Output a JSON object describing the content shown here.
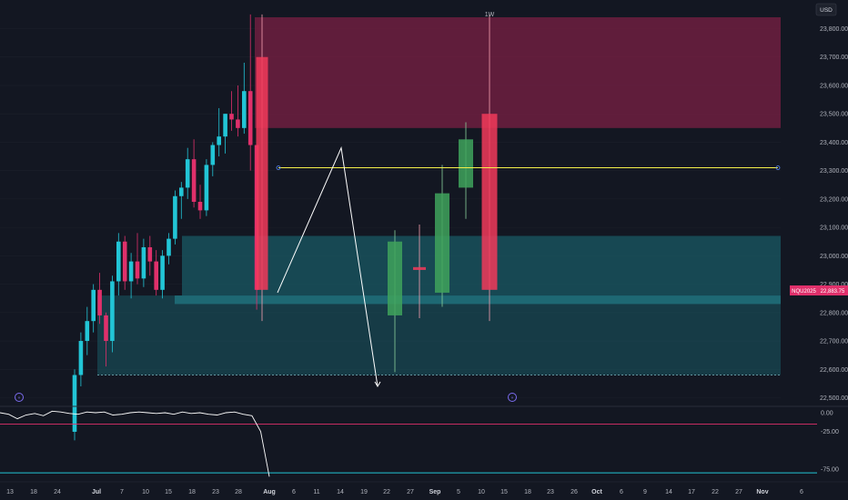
{
  "header": {
    "interval": "1W",
    "currency": "USD"
  },
  "price_label": {
    "symbol": "NQU2025",
    "value": "22,883.75"
  },
  "colors": {
    "background": "#131722",
    "up_daily": "#22c5d6",
    "down_daily": "#e0306b",
    "up_weekly": "#3fa35c",
    "down_weekly": "#f23a5a",
    "supply_zone": "#6e1f40",
    "demand_zone": "#1a5a64",
    "key_level": "#f5f04a",
    "rsi_line": "#ffffff",
    "rsi_upper": "#e0306b",
    "rsi_lower": "#22c5d6",
    "axis_text": "#b2b5be"
  },
  "main_axis": {
    "ticks": [
      "23,800.00",
      "23,700.00",
      "23,600.00",
      "23,500.00",
      "23,400.00",
      "23,300.00",
      "23,200.00",
      "23,100.00",
      "23,000.00",
      "22,900.00",
      "22,800.00",
      "22,700.00",
      "22,600.00",
      "22,500.00"
    ],
    "min": 22450,
    "max": 23900
  },
  "osc_axis": {
    "ticks": [
      "0.00",
      "-25.00",
      "-75.00"
    ],
    "min": -90,
    "max": 10
  },
  "x_axis": {
    "labels": [
      "13",
      "18",
      "24",
      "Jul",
      "7",
      "10",
      "15",
      "18",
      "23",
      "28",
      "Aug",
      "6",
      "11",
      "14",
      "19",
      "22",
      "27",
      "Sep",
      "5",
      "10",
      "15",
      "18",
      "23",
      "26",
      "Oct",
      "6",
      "9",
      "14",
      "17",
      "22",
      "27",
      "Nov",
      "6"
    ]
  },
  "chart_data": {
    "type": "candlestick",
    "interval": "1W",
    "currency": "USD",
    "daily_candles": [
      {
        "o": 22380,
        "h": 22600,
        "l": 22350,
        "c": 22580
      },
      {
        "o": 22580,
        "h": 22730,
        "l": 22540,
        "c": 22700
      },
      {
        "o": 22700,
        "h": 22820,
        "l": 22650,
        "c": 22770
      },
      {
        "o": 22770,
        "h": 22900,
        "l": 22730,
        "c": 22880
      },
      {
        "o": 22880,
        "h": 22940,
        "l": 22760,
        "c": 22790
      },
      {
        "o": 22790,
        "h": 22800,
        "l": 22610,
        "c": 22700
      },
      {
        "o": 22700,
        "h": 22930,
        "l": 22660,
        "c": 22910
      },
      {
        "o": 22910,
        "h": 23080,
        "l": 22860,
        "c": 23050
      },
      {
        "o": 23050,
        "h": 23070,
        "l": 22880,
        "c": 22910
      },
      {
        "o": 22910,
        "h": 23010,
        "l": 22850,
        "c": 22980
      },
      {
        "o": 22980,
        "h": 23080,
        "l": 22900,
        "c": 22920
      },
      {
        "o": 22920,
        "h": 23060,
        "l": 22890,
        "c": 23030
      },
      {
        "o": 23030,
        "h": 23070,
        "l": 22930,
        "c": 22980
      },
      {
        "o": 22980,
        "h": 23020,
        "l": 22860,
        "c": 22880
      },
      {
        "o": 22880,
        "h": 23020,
        "l": 22850,
        "c": 23000
      },
      {
        "o": 23000,
        "h": 23080,
        "l": 22970,
        "c": 23060
      },
      {
        "o": 23060,
        "h": 23230,
        "l": 23040,
        "c": 23210
      },
      {
        "o": 23210,
        "h": 23260,
        "l": 23130,
        "c": 23240
      },
      {
        "o": 23240,
        "h": 23380,
        "l": 23200,
        "c": 23340
      },
      {
        "o": 23340,
        "h": 23410,
        "l": 23170,
        "c": 23190
      },
      {
        "o": 23190,
        "h": 23250,
        "l": 23130,
        "c": 23160
      },
      {
        "o": 23160,
        "h": 23340,
        "l": 23140,
        "c": 23320
      },
      {
        "o": 23320,
        "h": 23400,
        "l": 23280,
        "c": 23390
      },
      {
        "o": 23390,
        "h": 23520,
        "l": 23350,
        "c": 23420
      },
      {
        "o": 23420,
        "h": 23500,
        "l": 23360,
        "c": 23500
      },
      {
        "o": 23500,
        "h": 23580,
        "l": 23440,
        "c": 23480
      },
      {
        "o": 23480,
        "h": 23600,
        "l": 23420,
        "c": 23450
      },
      {
        "o": 23450,
        "h": 23680,
        "l": 23430,
        "c": 23580
      },
      {
        "o": 23580,
        "h": 23850,
        "l": 23300,
        "c": 23390
      },
      {
        "o": 23390,
        "h": 23390,
        "l": 22810,
        "c": 22880
      }
    ],
    "weekly_candles": [
      {
        "label": "Aug 6",
        "o": 23700,
        "h": 23850,
        "l": 22770,
        "c": 22880
      },
      {
        "label": "Aug 22",
        "o": 22790,
        "h": 23090,
        "l": 22590,
        "c": 23050
      },
      {
        "label": "Aug 27",
        "o": 22960,
        "h": 23110,
        "l": 22780,
        "c": 22950
      },
      {
        "label": "Sep",
        "o": 22870,
        "h": 23320,
        "l": 22820,
        "c": 23220
      },
      {
        "label": "Sep 5",
        "o": 23240,
        "h": 23470,
        "l": 23130,
        "c": 23410
      },
      {
        "label": "Sep 10",
        "o": 23500,
        "h": 23850,
        "l": 22770,
        "c": 22880
      }
    ],
    "zones": [
      {
        "type": "supply",
        "top": 23840,
        "bottom": 23450
      },
      {
        "type": "demand",
        "top": 23070,
        "bottom": 22580
      },
      {
        "type": "demand_inner",
        "top": 22860,
        "bottom": 22830
      }
    ],
    "key_level": 23310,
    "projection_path": [
      {
        "date": "Aug 6",
        "price": 22870
      },
      {
        "date": "Aug 14",
        "price": 23380
      },
      {
        "date": "Aug 19",
        "price": 22540
      }
    ],
    "oscillator": {
      "levels": {
        "upper": -15,
        "lower": -80
      },
      "values": [
        0,
        -2,
        -8,
        -3,
        -1,
        -4,
        2,
        1,
        -1,
        -2,
        1,
        0,
        1,
        -3,
        -2,
        0,
        1,
        0,
        -1,
        0,
        -2,
        1,
        -1,
        0,
        -2,
        -3,
        0,
        1,
        -2,
        -4,
        -25,
        -85
      ]
    }
  }
}
